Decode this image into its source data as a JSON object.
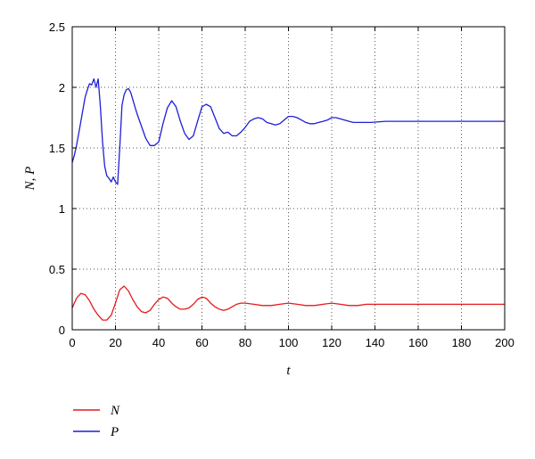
{
  "chart_data": {
    "type": "line",
    "title": "",
    "xlabel": "t",
    "ylabel": "N, P",
    "xlim": [
      0,
      200
    ],
    "ylim": [
      0,
      2.5
    ],
    "xticks": [
      0,
      20,
      40,
      60,
      80,
      100,
      120,
      140,
      160,
      180,
      200
    ],
    "yticks": [
      0,
      0.5,
      1,
      1.5,
      2,
      2.5
    ],
    "grid": true,
    "legend_position": "bottom-left, outside plot",
    "series": [
      {
        "name": "N",
        "color": "#e41a1c",
        "x": [
          0,
          2,
          4,
          6,
          8,
          10,
          12,
          14,
          16,
          18,
          20,
          22,
          24,
          26,
          28,
          30,
          32,
          34,
          36,
          38,
          40,
          42,
          44,
          46,
          48,
          50,
          52,
          54,
          56,
          58,
          60,
          62,
          64,
          66,
          68,
          70,
          72,
          74,
          76,
          78,
          80,
          84,
          88,
          92,
          96,
          100,
          104,
          108,
          112,
          116,
          120,
          124,
          128,
          132,
          136,
          140,
          150,
          160,
          170,
          180,
          190,
          200
        ],
        "y": [
          0.18,
          0.26,
          0.3,
          0.29,
          0.24,
          0.17,
          0.12,
          0.08,
          0.08,
          0.12,
          0.22,
          0.33,
          0.36,
          0.32,
          0.25,
          0.19,
          0.15,
          0.14,
          0.16,
          0.21,
          0.25,
          0.27,
          0.26,
          0.22,
          0.19,
          0.17,
          0.17,
          0.18,
          0.21,
          0.25,
          0.27,
          0.26,
          0.22,
          0.19,
          0.17,
          0.16,
          0.17,
          0.19,
          0.21,
          0.22,
          0.22,
          0.21,
          0.2,
          0.2,
          0.21,
          0.22,
          0.21,
          0.2,
          0.2,
          0.21,
          0.22,
          0.21,
          0.2,
          0.2,
          0.21,
          0.21,
          0.21,
          0.21,
          0.21,
          0.21,
          0.21,
          0.21
        ]
      },
      {
        "name": "P",
        "color": "#1f1fd6",
        "x": [
          0,
          1,
          2,
          3,
          4,
          5,
          6,
          7,
          8,
          9,
          10,
          11,
          12,
          13,
          14,
          15,
          16,
          17,
          18,
          19,
          20,
          21,
          22,
          23,
          24,
          25,
          26,
          27,
          28,
          29,
          30,
          32,
          34,
          36,
          38,
          40,
          42,
          44,
          46,
          48,
          50,
          52,
          54,
          56,
          58,
          60,
          62,
          64,
          66,
          68,
          70,
          72,
          74,
          76,
          78,
          80,
          82,
          84,
          86,
          88,
          90,
          92,
          94,
          96,
          98,
          100,
          102,
          104,
          106,
          108,
          110,
          112,
          114,
          116,
          118,
          120,
          122,
          124,
          126,
          128,
          130,
          134,
          138,
          145,
          155,
          170,
          185,
          200
        ],
        "y": [
          1.38,
          1.44,
          1.52,
          1.62,
          1.72,
          1.82,
          1.92,
          1.98,
          2.03,
          2.02,
          2.07,
          2.0,
          2.07,
          1.85,
          1.55,
          1.35,
          1.27,
          1.25,
          1.22,
          1.26,
          1.22,
          1.2,
          1.5,
          1.85,
          1.94,
          1.98,
          1.99,
          1.96,
          1.9,
          1.84,
          1.78,
          1.68,
          1.58,
          1.52,
          1.52,
          1.55,
          1.7,
          1.83,
          1.89,
          1.84,
          1.72,
          1.62,
          1.57,
          1.6,
          1.72,
          1.84,
          1.86,
          1.84,
          1.75,
          1.66,
          1.62,
          1.63,
          1.6,
          1.6,
          1.63,
          1.67,
          1.72,
          1.74,
          1.75,
          1.74,
          1.71,
          1.7,
          1.69,
          1.7,
          1.73,
          1.76,
          1.76,
          1.75,
          1.73,
          1.71,
          1.7,
          1.7,
          1.71,
          1.72,
          1.73,
          1.75,
          1.75,
          1.74,
          1.73,
          1.72,
          1.71,
          1.71,
          1.71,
          1.72,
          1.72,
          1.72,
          1.72,
          1.72
        ]
      }
    ]
  },
  "legend": {
    "items": [
      {
        "label": "N",
        "color": "#e41a1c"
      },
      {
        "label": "P",
        "color": "#1f1fd6"
      }
    ]
  },
  "colors": {
    "axis": "#000000",
    "grid": "#555555",
    "background": "#ffffff"
  }
}
